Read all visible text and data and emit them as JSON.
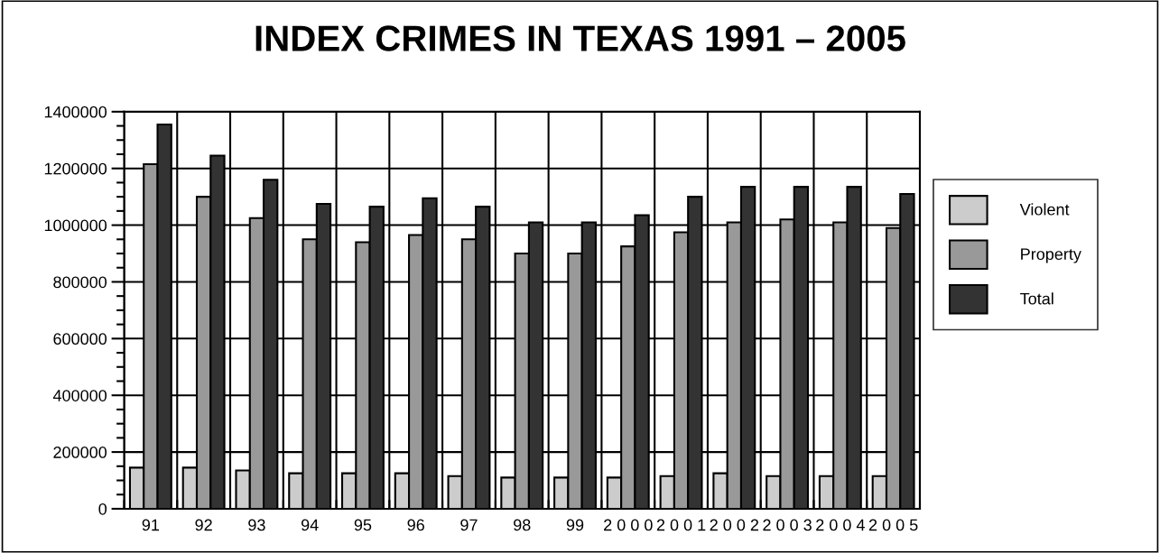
{
  "chart_data": {
    "type": "bar",
    "title": "INDEX CRIMES IN TEXAS 1991 – 2005",
    "categories": [
      "91",
      "92",
      "93",
      "94",
      "95",
      "96",
      "97",
      "98",
      "99",
      "2 0 0 0",
      "2 0 0 1",
      "2 0 0 2",
      "2 0 0 3",
      "2 0 0 4",
      "2 0 0 5"
    ],
    "series": [
      {
        "name": "Violent",
        "color": "#cccccc",
        "values": [
          145000,
          145000,
          135000,
          125000,
          125000,
          125000,
          115000,
          110000,
          110000,
          110000,
          115000,
          125000,
          115000,
          115000,
          115000
        ]
      },
      {
        "name": "Property",
        "color": "#999999",
        "values": [
          1215000,
          1100000,
          1025000,
          950000,
          940000,
          965000,
          950000,
          900000,
          900000,
          925000,
          975000,
          1010000,
          1020000,
          1010000,
          990000
        ]
      },
      {
        "name": "Total",
        "color": "#333333",
        "values": [
          1355000,
          1245000,
          1160000,
          1075000,
          1065000,
          1095000,
          1065000,
          1010000,
          1010000,
          1035000,
          1100000,
          1135000,
          1135000,
          1135000,
          1110000
        ]
      }
    ],
    "ylim": [
      0,
      1400000
    ],
    "yticks": [
      0,
      200000,
      400000,
      600000,
      800000,
      1000000,
      1200000,
      1400000
    ],
    "grid": true,
    "legend": "right"
  }
}
